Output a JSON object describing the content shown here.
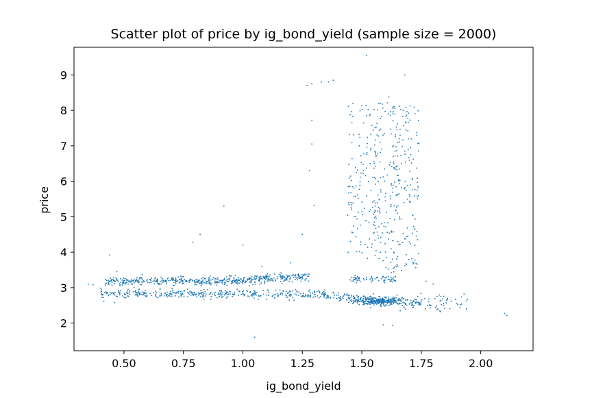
{
  "chart_data": {
    "type": "scatter",
    "title": "Scatter plot of price by ig_bond_yield (sample size = 2000)",
    "xlabel": "ig_bond_yield",
    "ylabel": "price",
    "xlim": [
      0.29,
      2.22
    ],
    "ylim": [
      1.22,
      9.78
    ],
    "xticks": [
      0.5,
      0.75,
      1.0,
      1.25,
      1.5,
      1.75,
      2.0
    ],
    "xtick_labels": [
      "0.50",
      "0.75",
      "1.00",
      "1.25",
      "1.50",
      "1.75",
      "2.00"
    ],
    "yticks": [
      2,
      3,
      4,
      5,
      6,
      7,
      8,
      9
    ],
    "ytick_labels": [
      "2",
      "3",
      "4",
      "5",
      "6",
      "7",
      "8",
      "9"
    ],
    "grid": false,
    "marker_color": "#1f77b4",
    "sample_size": 2000,
    "clusters": [
      {
        "region": "lower-band",
        "x_range": [
          0.35,
          1.95
        ],
        "y_center": 2.8,
        "y_spread": 0.08
      },
      {
        "region": "upper-band",
        "x_range": [
          0.4,
          1.3
        ],
        "y_center": 3.2,
        "y_spread": 0.08
      },
      {
        "region": "vertical-column",
        "x_range": [
          1.4,
          1.75
        ],
        "y_range": [
          3.3,
          8.4
        ]
      },
      {
        "region": "dense-blob",
        "x_center": 1.57,
        "y_center": 2.62
      }
    ],
    "points": [
      [
        0.35,
        3.1
      ],
      [
        0.37,
        3.08
      ],
      [
        0.44,
        3.92
      ],
      [
        0.47,
        3.45
      ],
      [
        0.46,
        2.58
      ],
      [
        0.79,
        4.28
      ],
      [
        0.82,
        4.5
      ],
      [
        0.92,
        5.3
      ],
      [
        1.0,
        4.2
      ],
      [
        1.05,
        1.6
      ],
      [
        1.08,
        3.6
      ],
      [
        1.2,
        3.7
      ],
      [
        1.25,
        4.5
      ],
      [
        1.27,
        8.7
      ],
      [
        1.29,
        8.75
      ],
      [
        1.33,
        8.8
      ],
      [
        1.36,
        8.8
      ],
      [
        1.38,
        8.85
      ],
      [
        1.29,
        7.72
      ],
      [
        1.29,
        7.05
      ],
      [
        1.3,
        5.32
      ],
      [
        1.28,
        6.3
      ],
      [
        1.52,
        9.55
      ],
      [
        1.68,
        9.0
      ],
      [
        1.59,
        1.95
      ],
      [
        1.63,
        1.93
      ],
      [
        1.77,
        3.18
      ],
      [
        1.8,
        3.1
      ],
      [
        1.82,
        2.4
      ],
      [
        1.83,
        2.32
      ],
      [
        1.86,
        2.7
      ],
      [
        1.93,
        2.82
      ],
      [
        1.94,
        2.4
      ],
      [
        2.1,
        2.27
      ],
      [
        2.11,
        2.22
      ]
    ]
  }
}
